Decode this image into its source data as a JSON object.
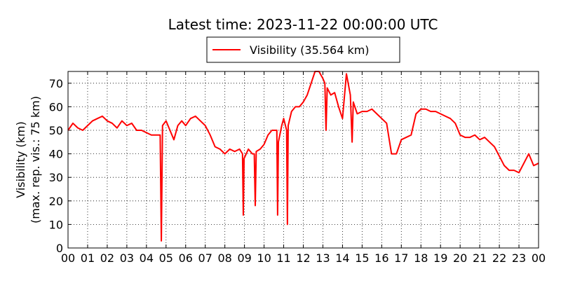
{
  "chart_data": {
    "type": "line",
    "title": "Latest time: 2023-11-22 00:00:00 UTC",
    "ylabel": [
      "Visibility (km)",
      "(max. rep. vis.: 75 km)"
    ],
    "legend_position": "top",
    "grid": true,
    "xlim": [
      0,
      24
    ],
    "ylim": [
      0,
      75
    ],
    "yticks": [
      0,
      10,
      20,
      30,
      40,
      50,
      60,
      70
    ],
    "xticks": [
      {
        "value": 0,
        "label": "00"
      },
      {
        "value": 1,
        "label": "01"
      },
      {
        "value": 2,
        "label": "02"
      },
      {
        "value": 3,
        "label": "03"
      },
      {
        "value": 4,
        "label": "04"
      },
      {
        "value": 5,
        "label": "05"
      },
      {
        "value": 6,
        "label": "06"
      },
      {
        "value": 7,
        "label": "07"
      },
      {
        "value": 8,
        "label": "08"
      },
      {
        "value": 9,
        "label": "09"
      },
      {
        "value": 10,
        "label": "10"
      },
      {
        "value": 11,
        "label": "11"
      },
      {
        "value": 12,
        "label": "12"
      },
      {
        "value": 13,
        "label": "13"
      },
      {
        "value": 14,
        "label": "14"
      },
      {
        "value": 15,
        "label": "15"
      },
      {
        "value": 16,
        "label": "16"
      },
      {
        "value": 17,
        "label": "17"
      },
      {
        "value": 18,
        "label": "18"
      },
      {
        "value": 19,
        "label": "19"
      },
      {
        "value": 20,
        "label": "20"
      },
      {
        "value": 21,
        "label": "21"
      },
      {
        "value": 22,
        "label": "22"
      },
      {
        "value": 23,
        "label": "23"
      },
      {
        "value": 24,
        "label": "00"
      }
    ],
    "x": [
      0,
      0.25,
      0.5,
      0.75,
      1,
      1.25,
      1.5,
      1.75,
      2,
      2.25,
      2.5,
      2.75,
      3,
      3.25,
      3.5,
      3.75,
      4,
      4.25,
      4.5,
      4.7,
      4.76,
      4.82,
      5,
      5.2,
      5.4,
      5.6,
      5.8,
      6,
      6.25,
      6.5,
      6.75,
      7,
      7.25,
      7.5,
      7.75,
      8,
      8.25,
      8.5,
      8.75,
      8.9,
      8.94,
      8.98,
      9.2,
      9.4,
      9.5,
      9.55,
      9.6,
      9.8,
      10,
      10.2,
      10.4,
      10.65,
      10.69,
      10.73,
      10.9,
      11,
      11.15,
      11.19,
      11.23,
      11.4,
      11.6,
      11.8,
      12,
      12.2,
      12.4,
      12.6,
      12.8,
      13,
      13.1,
      13.16,
      13.22,
      13.4,
      13.6,
      13.8,
      14,
      14.2,
      14.4,
      14.49,
      14.55,
      14.75,
      15,
      15.25,
      15.5,
      15.75,
      16,
      16.25,
      16.5,
      16.75,
      17,
      17.25,
      17.5,
      17.75,
      18,
      18.25,
      18.5,
      18.75,
      19,
      19.25,
      19.5,
      19.75,
      20,
      20.25,
      20.5,
      20.75,
      21,
      21.25,
      21.5,
      21.75,
      22,
      22.25,
      22.5,
      22.75,
      23,
      23.25,
      23.5,
      23.75,
      24
    ],
    "series": [
      {
        "name": "Visibility (35.564 km)",
        "color": "#ff0000",
        "values": [
          50,
          53,
          51,
          50,
          52,
          54,
          55,
          56,
          54,
          53,
          51,
          54,
          52,
          53,
          50,
          50,
          49,
          48,
          48,
          48,
          3,
          52,
          54,
          50,
          46,
          52,
          54,
          52,
          55,
          56,
          54,
          52,
          48,
          43,
          42,
          40,
          42,
          41,
          42,
          40,
          14,
          38,
          42,
          40,
          40,
          18,
          41,
          42,
          44,
          48,
          50,
          50,
          14,
          45,
          52,
          55,
          50,
          10,
          52,
          58,
          60,
          60,
          62,
          65,
          70,
          75,
          75,
          72,
          70,
          50,
          68,
          65,
          66,
          60,
          55,
          74,
          65,
          45,
          62,
          57,
          58,
          58,
          59,
          57,
          55,
          53,
          40,
          40,
          46,
          47,
          48,
          57,
          59,
          59,
          58,
          58,
          57,
          56,
          55,
          53,
          48,
          47,
          47,
          48,
          46,
          47,
          45,
          43,
          39,
          35,
          33,
          33,
          32,
          36,
          40,
          35,
          36
        ]
      }
    ]
  }
}
